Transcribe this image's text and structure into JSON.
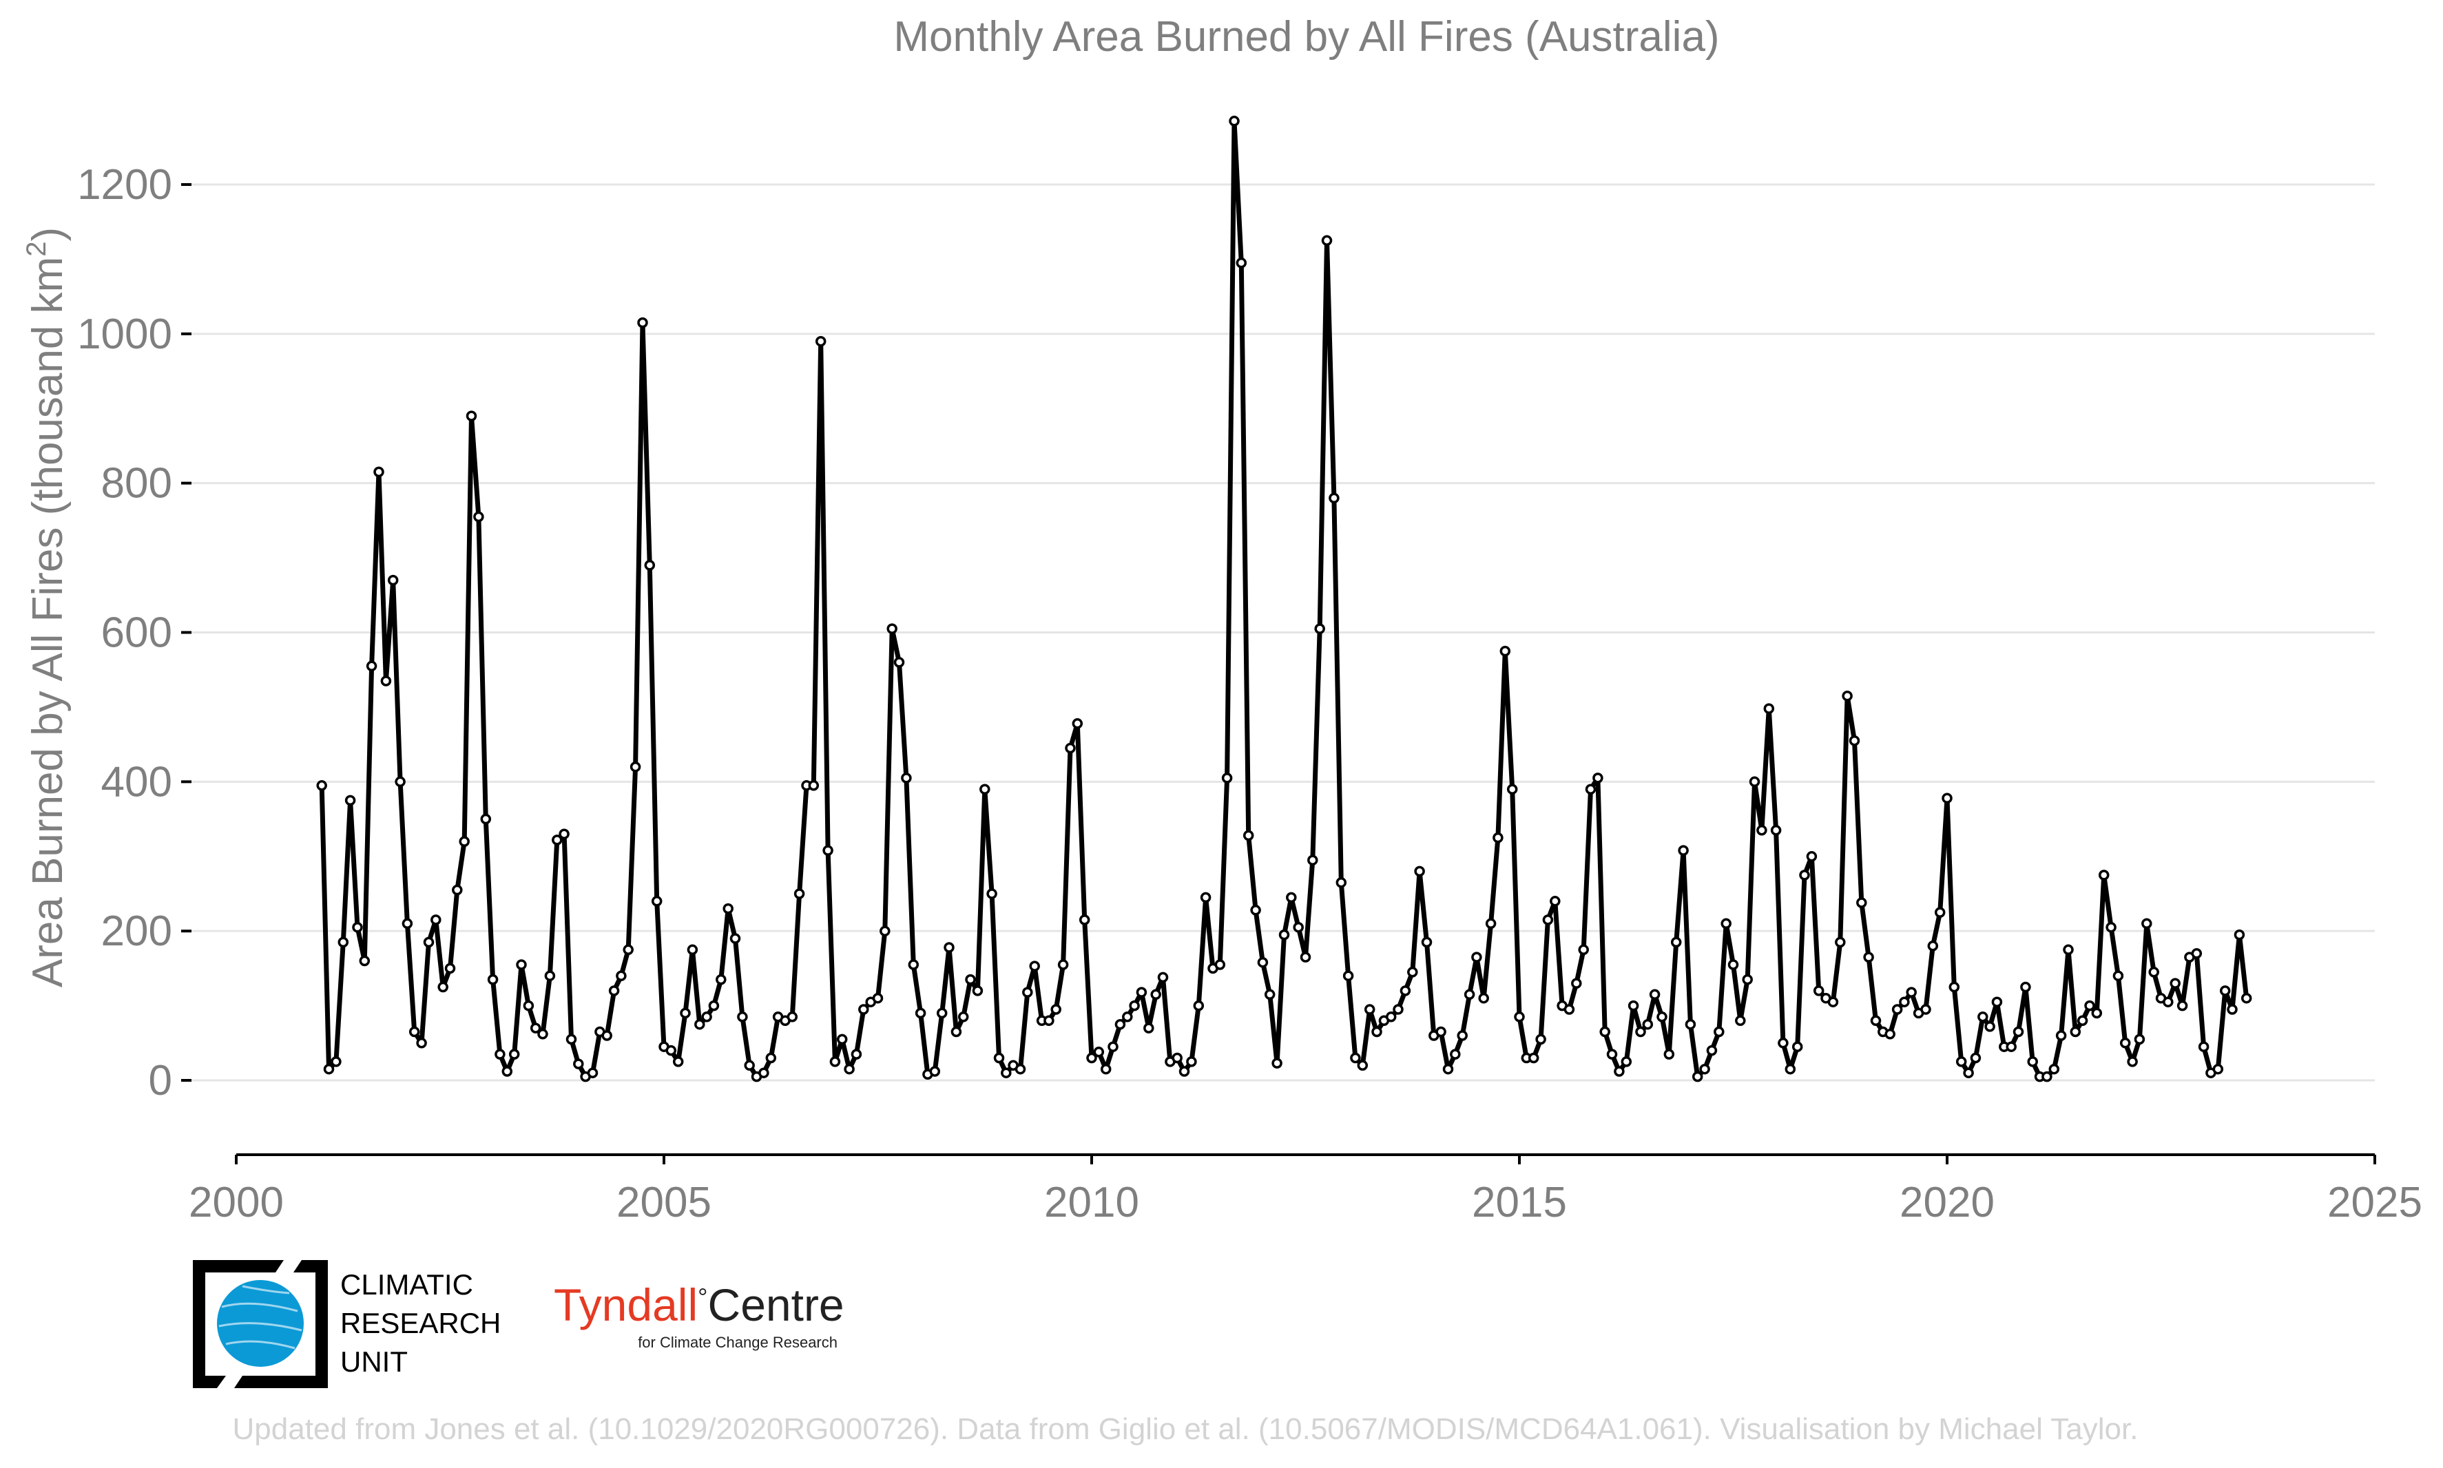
{
  "chart_data": {
    "type": "line",
    "title": "Monthly Area Burned by All Fires (Australia)",
    "xlabel": "",
    "ylabel": "Area Burned by All Fires (thousand km",
    "ylabel_superscript": "2",
    "ylabel_close": ")",
    "xlim": [
      2000,
      2025
    ],
    "ylim": [
      -90,
      1320
    ],
    "x_ticks": [
      2000,
      2005,
      2010,
      2015,
      2020,
      2025
    ],
    "x_tick_labels": [
      "2000",
      "2005",
      "2010",
      "2015",
      "2020",
      "2025"
    ],
    "y_ticks": [
      0,
      200,
      400,
      600,
      800,
      1000,
      1200
    ],
    "y_tick_labels": [
      "0",
      "200",
      "400",
      "600",
      "800",
      "1000",
      "1200"
    ],
    "grid": true,
    "legend": false,
    "marker": "open-circle",
    "series": [
      {
        "start_year": 2001,
        "start_month": 1,
        "frequency": "monthly",
        "values": [
          395,
          15,
          25,
          185,
          375,
          205,
          160,
          555,
          815,
          535,
          670,
          400,
          210,
          65,
          50,
          185,
          215,
          125,
          150,
          255,
          320,
          890,
          755,
          350,
          135,
          35,
          12,
          35,
          155,
          100,
          70,
          62,
          140,
          322,
          330,
          55,
          22,
          5,
          10,
          65,
          60,
          120,
          140,
          175,
          420,
          1015,
          690,
          240,
          45,
          40,
          25,
          90,
          175,
          75,
          85,
          100,
          135,
          230,
          190,
          85,
          20,
          5,
          10,
          30,
          85,
          80,
          85,
          250,
          395,
          395,
          990,
          308,
          25,
          55,
          15,
          35,
          95,
          105,
          110,
          200,
          605,
          560,
          405,
          155,
          90,
          8,
          12,
          90,
          178,
          65,
          85,
          135,
          120,
          390,
          250,
          30,
          10,
          20,
          15,
          118,
          153,
          80,
          80,
          95,
          155,
          445,
          478,
          215,
          30,
          38,
          15,
          45,
          75,
          85,
          100,
          118,
          70,
          115,
          138,
          25,
          30,
          12,
          25,
          100,
          245,
          150,
          155,
          405,
          1285,
          1095,
          328,
          228,
          158,
          115,
          23,
          195,
          245,
          205,
          165,
          295,
          605,
          1125,
          780,
          265,
          140,
          30,
          20,
          95,
          65,
          80,
          85,
          95,
          120,
          145,
          280,
          185,
          60,
          65,
          15,
          35,
          60,
          115,
          165,
          110,
          210,
          325,
          575,
          390,
          85,
          30,
          30,
          55,
          215,
          240,
          100,
          95,
          130,
          175,
          390,
          405,
          65,
          35,
          12,
          25,
          100,
          65,
          75,
          115,
          85,
          35,
          185,
          308,
          75,
          5,
          15,
          40,
          65,
          210,
          155,
          80,
          135,
          400,
          335,
          498,
          335,
          50,
          15,
          45,
          275,
          300,
          120,
          110,
          105,
          185,
          515,
          455,
          238,
          165,
          80,
          65,
          62,
          95,
          105,
          118,
          90,
          95,
          180,
          225,
          378,
          125,
          25,
          10,
          30,
          85,
          72,
          105,
          45,
          45,
          65,
          125,
          25,
          5,
          5,
          15,
          60,
          175,
          65,
          80,
          100,
          90,
          275,
          205,
          140,
          50,
          25,
          55,
          210,
          145,
          110,
          105,
          130,
          100,
          165,
          170,
          45,
          10,
          15,
          120,
          95,
          195,
          110
        ]
      }
    ]
  },
  "logos": {
    "cru_lines": [
      "CLIMATIC",
      "RESEARCH",
      "UNIT"
    ],
    "tyndall_main_a": "Tyndall",
    "tyndall_main_degree": "°",
    "tyndall_main_b": "Centre",
    "tyndall_sub": "for Climate Change Research",
    "tyndall_red": "#e53a23"
  },
  "credit": "Updated from Jones et al. (10.1029/2020RG000726). Data from Giglio et al. (10.5067/MODIS/MCD64A1.061). Visualisation by Michael Taylor.",
  "colors": {
    "text_gray": "#7f7f7f",
    "grid": "#e5e5e5",
    "line": "#000000",
    "credit_gray": "#d3d3d3",
    "globe_blue": "#0c9ad6"
  }
}
